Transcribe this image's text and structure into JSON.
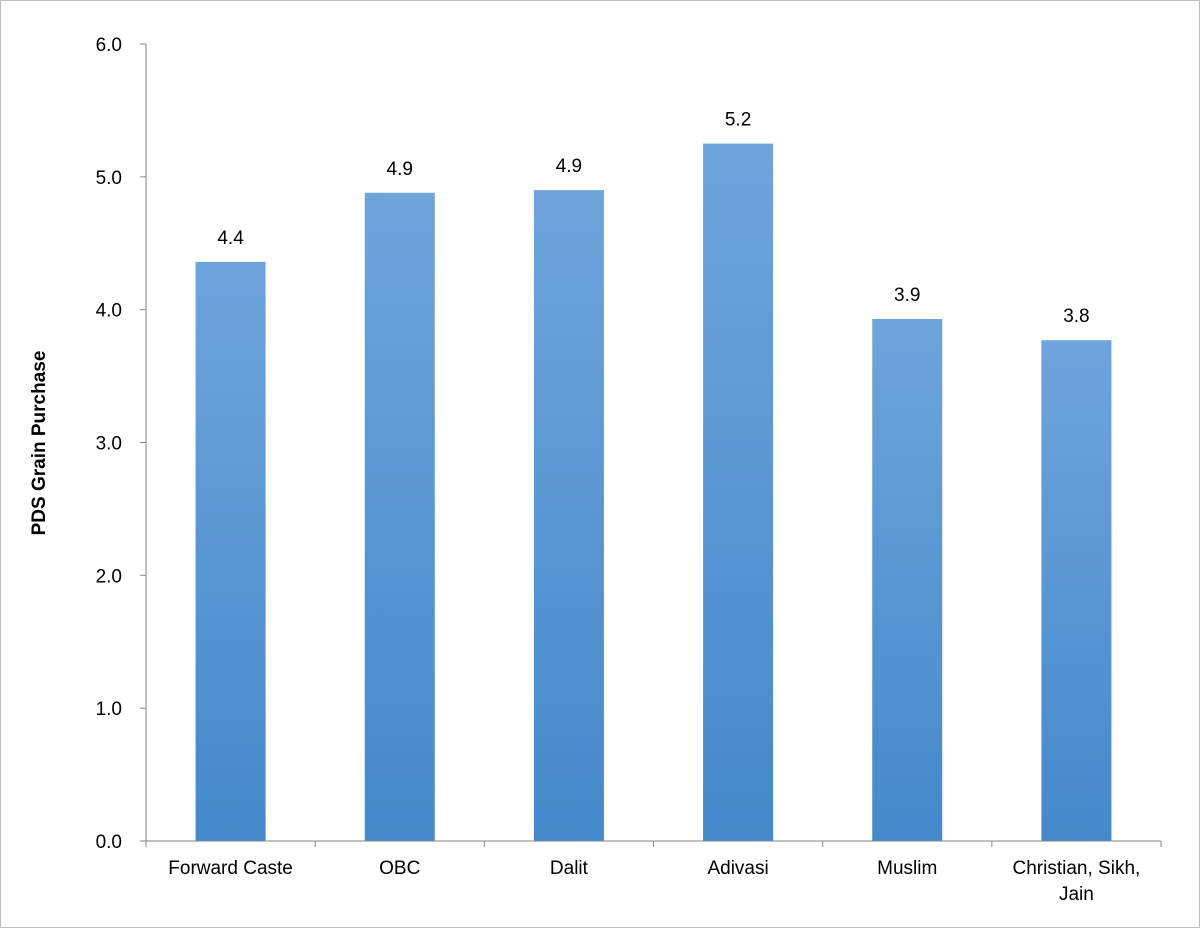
{
  "chart_data": {
    "type": "bar",
    "title": "",
    "xlabel": "",
    "ylabel": "PDS Grain Purchase",
    "categories": [
      "Forward Caste",
      "OBC",
      "Dalit",
      "Adivasi",
      "Muslim",
      "Christian, Sikh, Jain"
    ],
    "category_lines": [
      [
        "Forward Caste"
      ],
      [
        "OBC"
      ],
      [
        "Dalit"
      ],
      [
        "Adivasi"
      ],
      [
        "Muslim"
      ],
      [
        "Christian, Sikh,",
        "Jain"
      ]
    ],
    "values": [
      4.36,
      4.88,
      4.9,
      5.25,
      3.93,
      3.77
    ],
    "data_labels": [
      "4.4",
      "4.9",
      "4.9",
      "5.2",
      "3.9",
      "3.8"
    ],
    "ylim": [
      0,
      6
    ],
    "yticks": [
      0,
      1,
      2,
      3,
      4,
      5,
      6
    ],
    "ytick_labels": [
      "0.0",
      "1.0",
      "2.0",
      "3.0",
      "4.0",
      "5.0",
      "6.0"
    ],
    "grid": false,
    "legend": "none",
    "bar_color_top": "#6fa4dc",
    "bar_color_bottom": "#4389cb",
    "axis_color": "#868686"
  }
}
